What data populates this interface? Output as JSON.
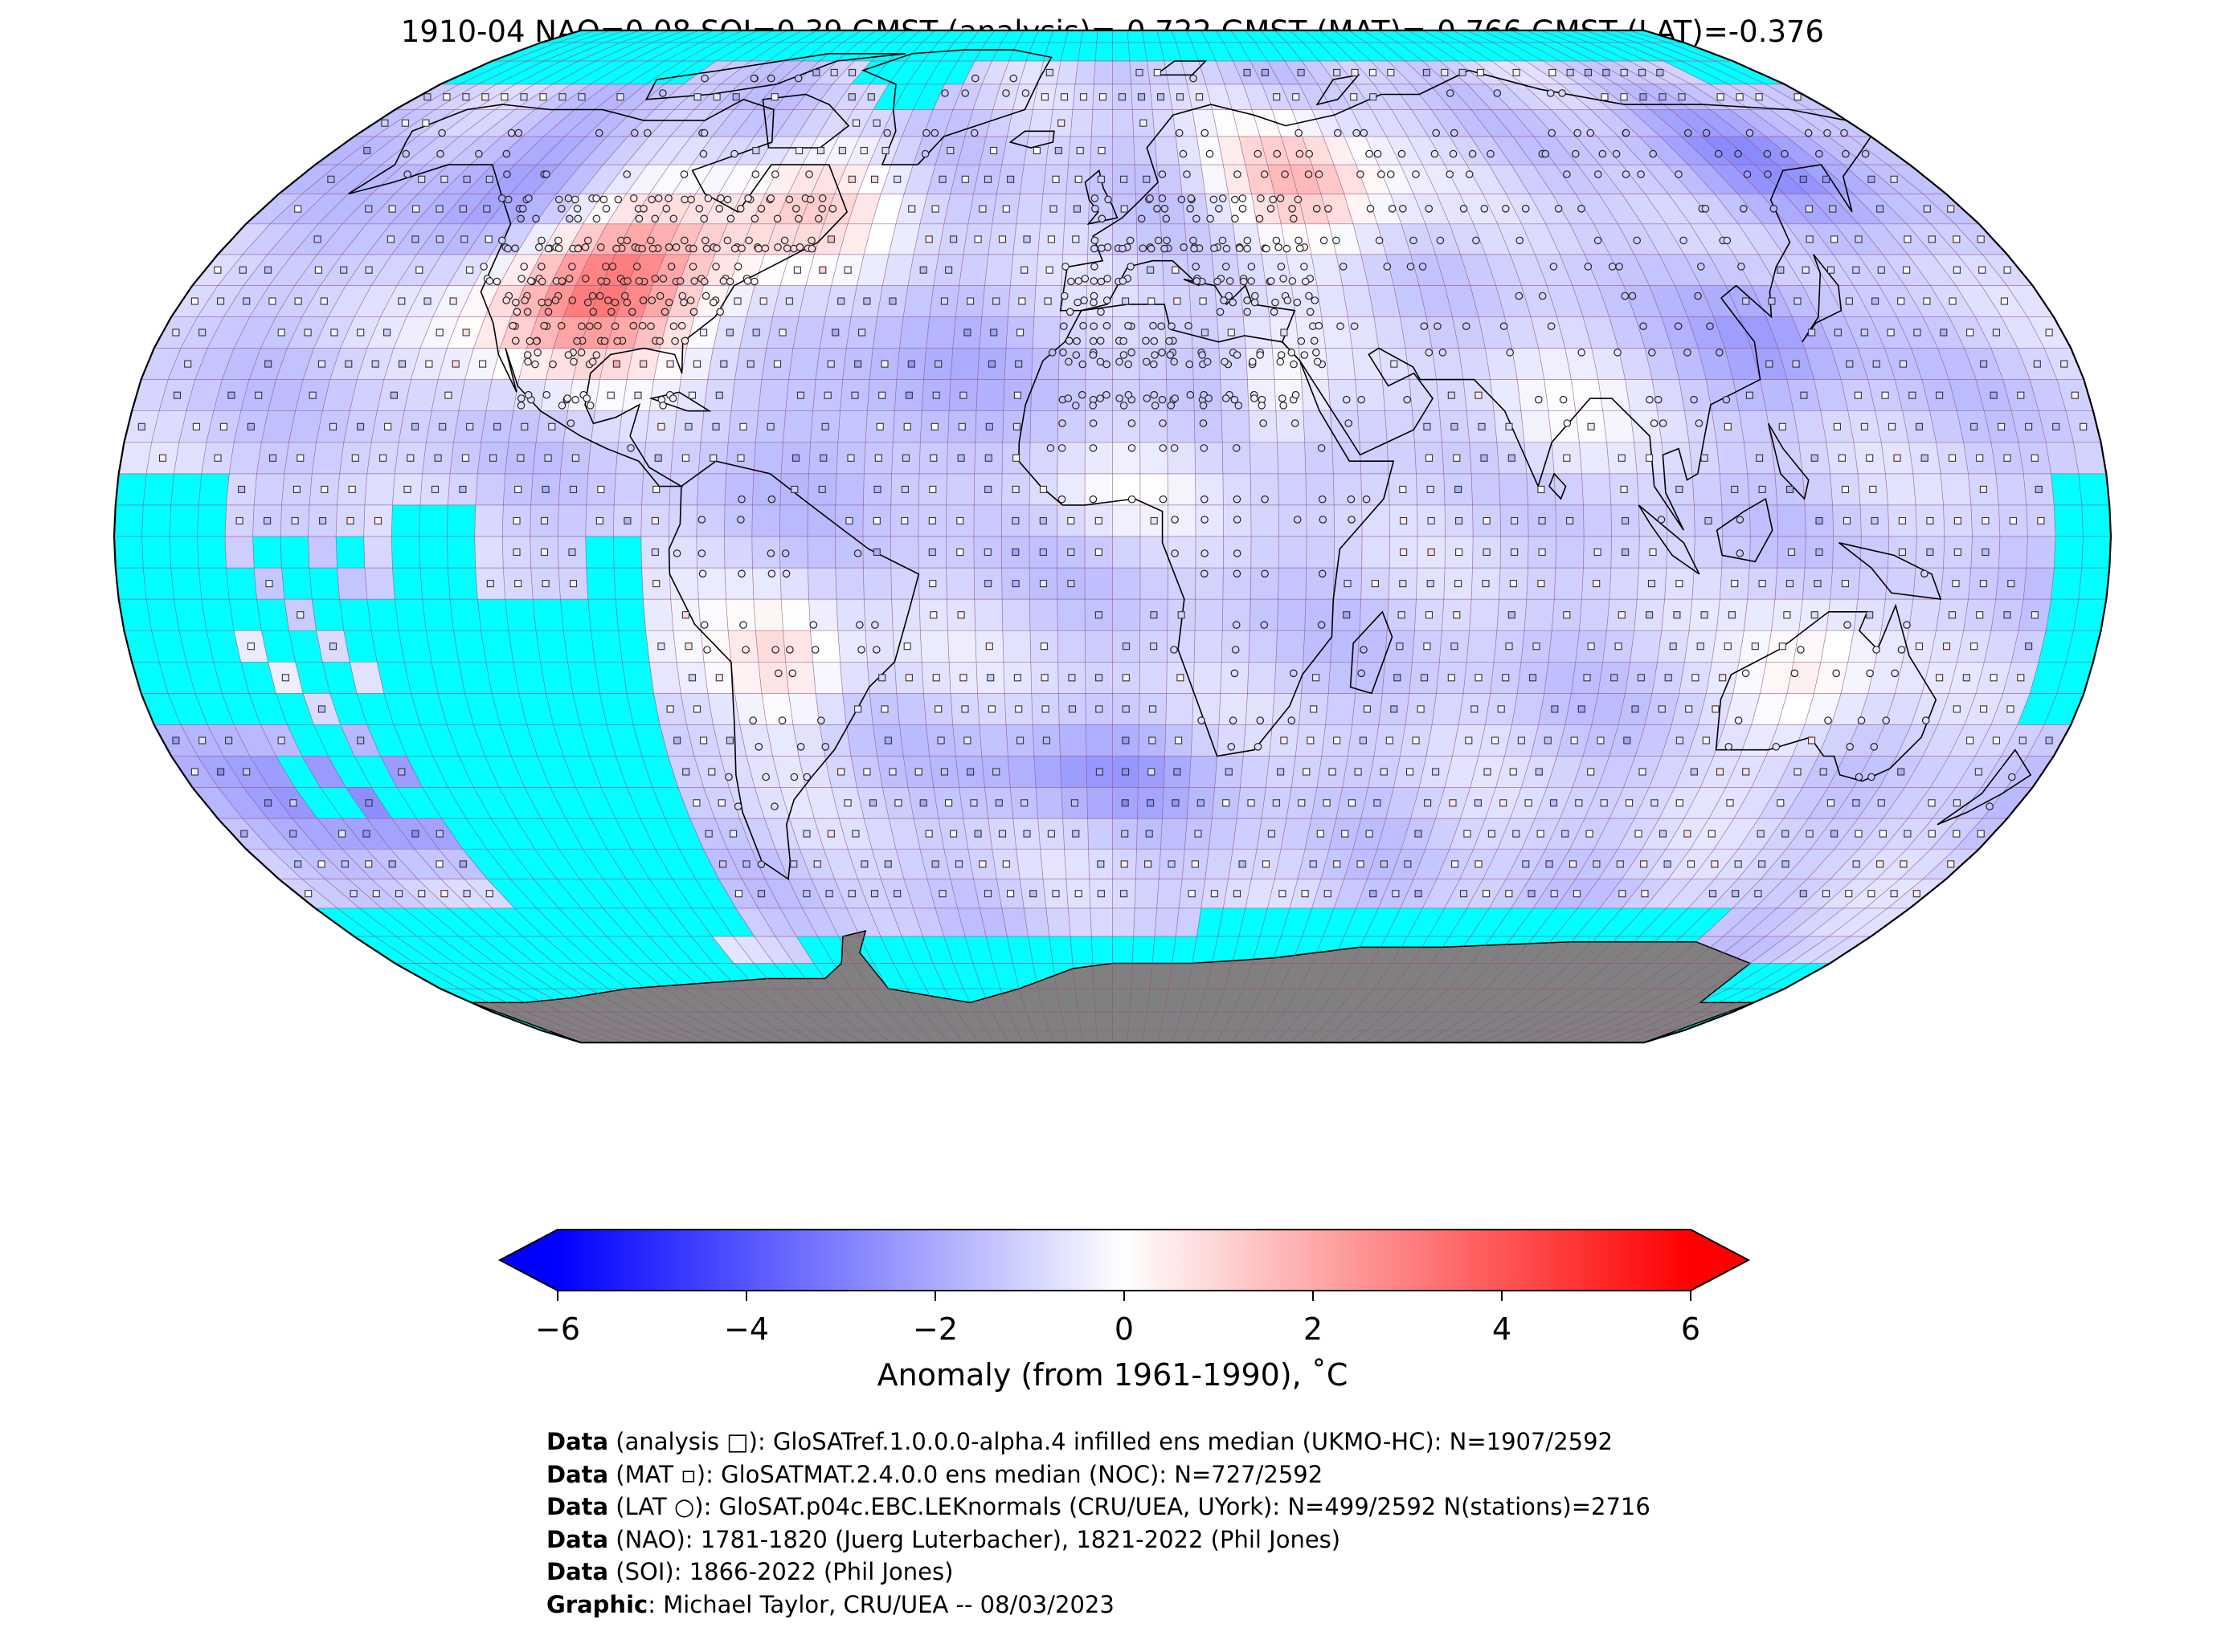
{
  "title": "1910-04 NAO=0.08 SOI=0.39 GMST (analysis)=-0.722 GMST (MAT)=-0.766 GMST (LAT)=-0.376",
  "map": {
    "projection": "Robinson",
    "grid": "5x5 degree",
    "grid_cells": 2592,
    "colors": {
      "missing": "#00ffff",
      "antarctica_land": "#808080",
      "grid_line": "#9a4a86",
      "coastline": "#000000",
      "border": "#7a7a7a"
    }
  },
  "colorbar": {
    "ticks": [
      "−6",
      "−4",
      "−2",
      "0",
      "2",
      "4",
      "6"
    ],
    "tick_values": [
      -6,
      -4,
      -2,
      0,
      2,
      4,
      6
    ],
    "range": [
      -6,
      6
    ],
    "extend": "both",
    "colormap": "bwr",
    "label": "Anomaly (from 1961-1990), ˚C",
    "colors": {
      "low": "#0000ff",
      "mid": "#ffffff",
      "high": "#ff0000"
    }
  },
  "credits": [
    {
      "bold": "Data",
      "text": " (analysis □): GloSATref.1.0.0.0-alpha.4 infilled ens median (UKMO-HC): N=1907/2592"
    },
    {
      "bold": "Data",
      "text": " (MAT ▫): GloSATMAT.2.4.0.0 ens median (NOC): N=727/2592"
    },
    {
      "bold": "Data",
      "text": " (LAT ○): GloSAT.p04c.EBC.LEKnormals (CRU/UEA, UYork): N=499/2592 N(stations)=2716"
    },
    {
      "bold": "Data",
      "text": " (NAO): 1781-1820 (Juerg Luterbacher), 1821-2022 (Phil Jones)"
    },
    {
      "bold": "Data",
      "text": " (SOI): 1866-2022 (Phil Jones)"
    },
    {
      "bold": "Graphic",
      "text": ": Michael Taylor, CRU/UEA -- 08/03/2023"
    }
  ]
}
